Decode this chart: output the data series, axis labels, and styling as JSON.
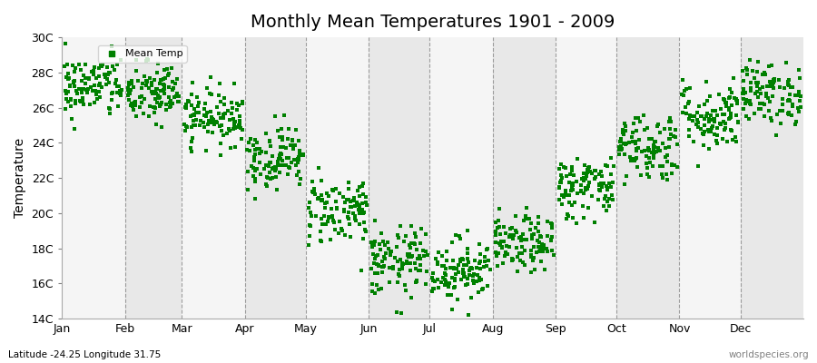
{
  "title": "Monthly Mean Temperatures 1901 - 2009",
  "ylabel": "Temperature",
  "yticks": [
    14,
    16,
    18,
    20,
    22,
    24,
    26,
    28,
    30
  ],
  "ytick_labels": [
    "14C",
    "16C",
    "18C",
    "20C",
    "22C",
    "24C",
    "26C",
    "28C",
    "30C"
  ],
  "months": [
    "Jan",
    "Feb",
    "Mar",
    "Apr",
    "May",
    "Jun",
    "Jul",
    "Aug",
    "Sep",
    "Oct",
    "Nov",
    "Dec"
  ],
  "month_days": [
    31,
    28,
    31,
    30,
    31,
    30,
    31,
    31,
    30,
    31,
    30,
    31
  ],
  "marker_color": "#008000",
  "band_color_light": "#f5f5f5",
  "band_color_dark": "#e8e8e8",
  "footer_left": "Latitude -24.25 Longitude 31.75",
  "footer_right": "worldspecies.org",
  "legend_label": "Mean Temp",
  "monthly_means": [
    27.2,
    26.8,
    25.5,
    23.2,
    20.2,
    17.2,
    16.8,
    18.2,
    21.5,
    23.8,
    25.5,
    26.8
  ],
  "monthly_stds": [
    0.9,
    0.9,
    0.8,
    0.9,
    1.0,
    1.0,
    0.9,
    0.8,
    0.9,
    1.0,
    1.0,
    0.9
  ],
  "n_years": 109,
  "seed": 42,
  "ylim": [
    14,
    30
  ],
  "title_fontsize": 14,
  "axis_fontsize": 9,
  "ylabel_fontsize": 10,
  "legend_fontsize": 8,
  "footer_fontsize": 7.5
}
